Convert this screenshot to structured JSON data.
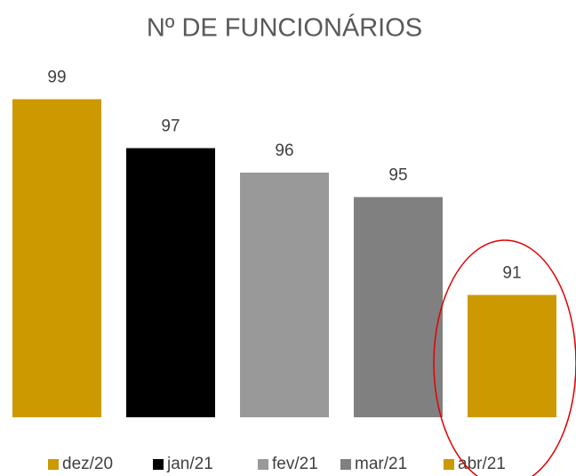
{
  "chart_data": {
    "type": "bar",
    "title": "Nº DE FUNCIONÁRIOS",
    "categories": [
      "dez/20",
      "jan/21",
      "fev/21",
      "mar/21",
      "abr/21"
    ],
    "values": [
      99,
      97,
      96,
      95,
      91
    ],
    "colors": [
      "#cc9900",
      "#000000",
      "#999999",
      "#808080",
      "#cc9900"
    ],
    "ylim": [
      86,
      100
    ],
    "legend": "bottom"
  }
}
